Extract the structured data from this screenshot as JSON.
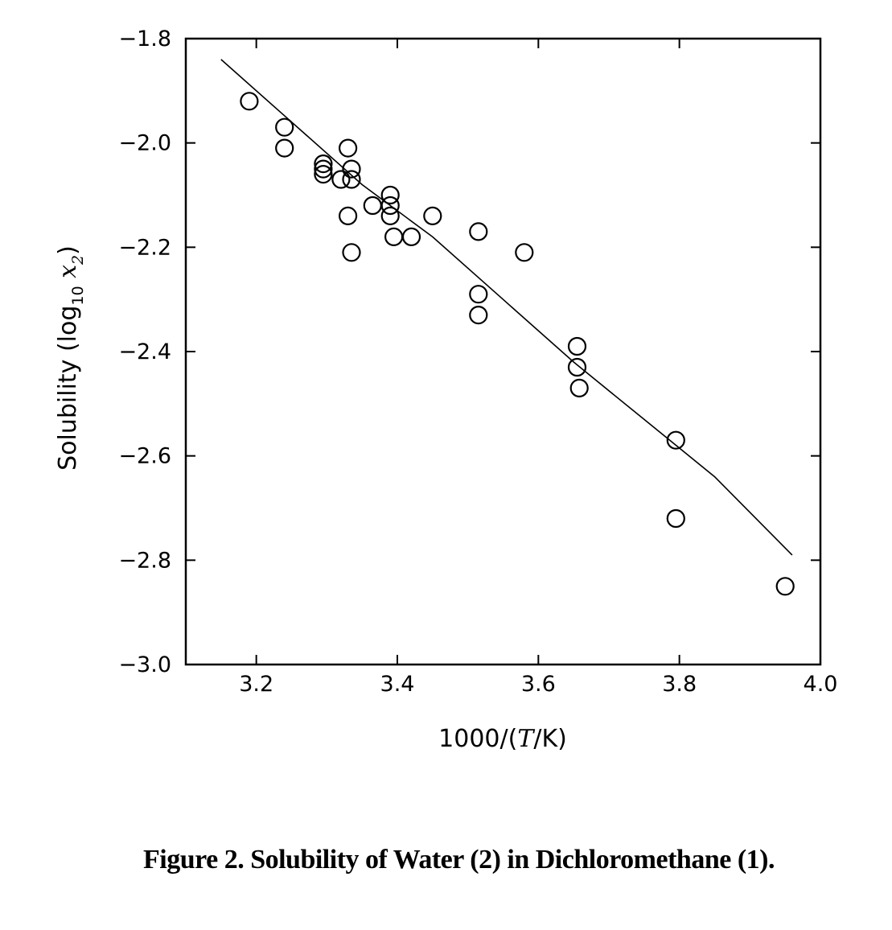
{
  "chart_data": {
    "type": "scatter",
    "title": "",
    "xlabel": {
      "prefix": "1000/(",
      "var": "T",
      "suffix": "/K)"
    },
    "ylabel": {
      "prefix": "Solubility (log",
      "sub": "10",
      "var": " x",
      "varsub": "2",
      "suffix": ")"
    },
    "xlim": [
      3.1,
      4.0
    ],
    "ylim": [
      -3.0,
      -1.8
    ],
    "xticks": [
      3.2,
      3.4,
      3.6,
      3.8,
      4.0
    ],
    "xtick_labels": [
      "3.2",
      "3.4",
      "3.6",
      "3.8",
      "4.0"
    ],
    "yticks": [
      -1.8,
      -2.0,
      -2.2,
      -2.4,
      -2.6,
      -2.8,
      -3.0
    ],
    "ytick_labels": [
      "−1.8",
      "−2.0",
      "−2.2",
      "−2.4",
      "−2.6",
      "−2.8",
      "−3.0"
    ],
    "grid": false,
    "series": [
      {
        "kind": "points",
        "marker": "open-circle",
        "points": [
          [
            3.19,
            -1.92
          ],
          [
            3.24,
            -1.97
          ],
          [
            3.24,
            -2.01
          ],
          [
            3.295,
            -2.04
          ],
          [
            3.295,
            -2.05
          ],
          [
            3.295,
            -2.06
          ],
          [
            3.32,
            -2.07
          ],
          [
            3.33,
            -2.01
          ],
          [
            3.335,
            -2.05
          ],
          [
            3.335,
            -2.07
          ],
          [
            3.33,
            -2.14
          ],
          [
            3.335,
            -2.21
          ],
          [
            3.365,
            -2.12
          ],
          [
            3.39,
            -2.1
          ],
          [
            3.39,
            -2.12
          ],
          [
            3.39,
            -2.14
          ],
          [
            3.395,
            -2.18
          ],
          [
            3.42,
            -2.18
          ],
          [
            3.45,
            -2.14
          ],
          [
            3.515,
            -2.17
          ],
          [
            3.515,
            -2.29
          ],
          [
            3.515,
            -2.33
          ],
          [
            3.58,
            -2.21
          ],
          [
            3.655,
            -2.39
          ],
          [
            3.655,
            -2.43
          ],
          [
            3.658,
            -2.47
          ],
          [
            3.795,
            -2.57
          ],
          [
            3.795,
            -2.72
          ],
          [
            3.95,
            -2.85
          ]
        ]
      },
      {
        "kind": "line",
        "points": [
          [
            3.15,
            -1.84
          ],
          [
            3.25,
            -1.96
          ],
          [
            3.35,
            -2.08
          ],
          [
            3.45,
            -2.18
          ],
          [
            3.55,
            -2.3
          ],
          [
            3.65,
            -2.42
          ],
          [
            3.75,
            -2.53
          ],
          [
            3.85,
            -2.64
          ],
          [
            3.96,
            -2.79
          ]
        ]
      }
    ]
  },
  "caption": "Figure 2. Solubility of Water (2) in Dichloromethane (1)."
}
